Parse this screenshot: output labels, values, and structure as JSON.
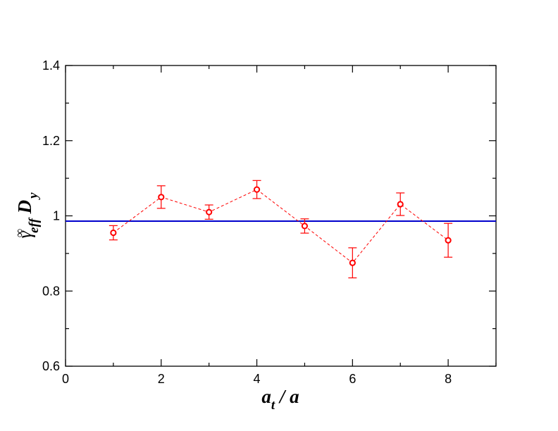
{
  "chart_data": {
    "type": "scatter",
    "title": "",
    "xlabel": {
      "main": "a",
      "sub": "t",
      "rest": " / a"
    },
    "ylabel": {
      "symbol": "γ",
      "sup": "∞",
      "sub": "eff",
      "rest": " D",
      "rest_sub": "y"
    },
    "xlim": [
      0,
      9
    ],
    "ylim": [
      0.6,
      1.4
    ],
    "x_ticks": [
      0,
      2,
      4,
      6,
      8
    ],
    "x_tick_labels": [
      "0",
      "2",
      "4",
      "6",
      "8"
    ],
    "y_ticks": [
      0.6,
      0.8,
      1.0,
      1.2,
      1.4
    ],
    "y_tick_labels": [
      "0.6",
      "0.8",
      "1",
      "1.2",
      "1.4"
    ],
    "grid": false,
    "series": [
      {
        "style": "circle markers with error bars, dashed connecting line",
        "color": "#ff0000",
        "x": [
          1,
          2,
          3,
          4,
          5,
          6,
          7,
          8
        ],
        "y": [
          0.955,
          1.05,
          1.01,
          1.07,
          0.973,
          0.875,
          1.031,
          0.935
        ],
        "yerr": [
          0.019,
          0.03,
          0.019,
          0.024,
          0.019,
          0.04,
          0.03,
          0.045
        ]
      }
    ],
    "reference_line": {
      "y": 0.986,
      "color": "#0000cc"
    }
  }
}
